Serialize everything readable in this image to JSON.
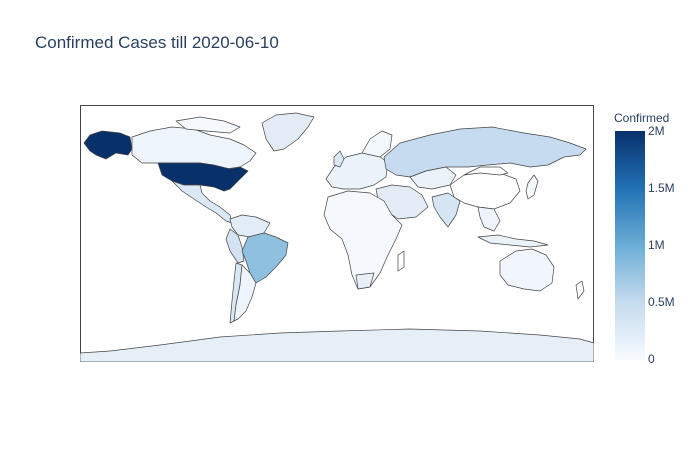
{
  "title": "Confirmed Cases till 2020-06-10",
  "colorbar": {
    "title": "Confirmed",
    "ticks": [
      {
        "label": "2M",
        "value": 2000000
      },
      {
        "label": "1.5M",
        "value": 1500000
      },
      {
        "label": "1M",
        "value": 1000000
      },
      {
        "label": "0.5M",
        "value": 500000
      },
      {
        "label": "0",
        "value": 0
      }
    ],
    "colorscale": [
      "#f7fbff",
      "#c6dbef",
      "#6baed6",
      "#2171b5",
      "#08306b"
    ],
    "range": [
      0,
      2000000
    ]
  },
  "map": {
    "projection": "equirectangular",
    "land_default_color": "#ffffff",
    "border_color": "#444444",
    "highlighted_regions": [
      {
        "name": "United States",
        "confirmed": 2000000
      },
      {
        "name": "Alaska (United States)",
        "confirmed": 2000000
      },
      {
        "name": "Brazil",
        "confirmed": 740000
      },
      {
        "name": "Russia",
        "confirmed": 490000
      },
      {
        "name": "Greenland",
        "confirmed": 0
      },
      {
        "name": "Antarctica",
        "confirmed": 0
      }
    ]
  }
}
